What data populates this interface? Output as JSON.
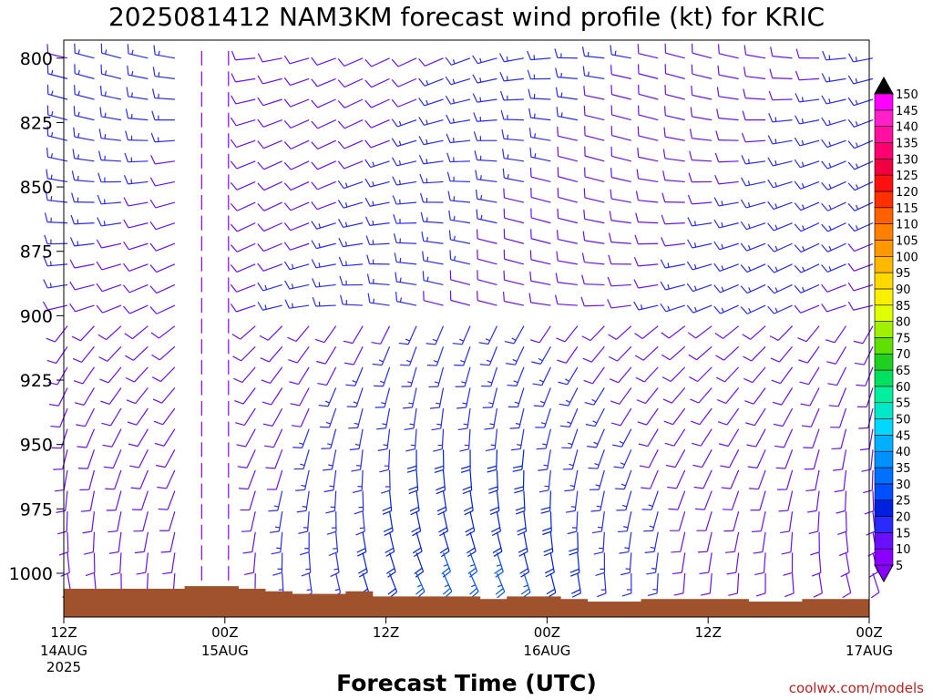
{
  "chart_data": {
    "type": "wind-barb time-height profile",
    "title": "2025081412 NAM3KM forecast wind profile (kt) for KRIC",
    "xlabel": "Forecast Time (UTC)",
    "ylabel": "",
    "credit": "coolwx.com/models",
    "y_axis": {
      "unit": "hPa",
      "range": [
        793,
        1017
      ],
      "inverted": true,
      "ticks": [
        800,
        825,
        850,
        875,
        900,
        925,
        950,
        975,
        1000
      ]
    },
    "x_axis": {
      "range_hours": [
        0,
        60
      ],
      "ticks": [
        {
          "hour": 0,
          "label": "12Z",
          "sub": [
            "14AUG",
            "2025"
          ]
        },
        {
          "hour": 12,
          "label": "00Z",
          "sub": [
            "15AUG"
          ]
        },
        {
          "hour": 24,
          "label": "12Z",
          "sub": []
        },
        {
          "hour": 36,
          "label": "00Z",
          "sub": [
            "16AUG"
          ]
        },
        {
          "hour": 48,
          "label": "12Z",
          "sub": []
        },
        {
          "hour": 60,
          "label": "00Z",
          "sub": [
            "17AUG"
          ]
        }
      ]
    },
    "colorbar": {
      "levels": [
        5,
        10,
        15,
        20,
        25,
        30,
        35,
        40,
        45,
        50,
        55,
        60,
        65,
        70,
        75,
        80,
        85,
        90,
        95,
        100,
        105,
        110,
        115,
        120,
        125,
        130,
        135,
        140,
        145,
        150
      ],
      "colors": [
        "#8a00ff",
        "#6a10ff",
        "#2a2aff",
        "#0020e0",
        "#0050ff",
        "#0070ff",
        "#0090ff",
        "#00b0ff",
        "#00d8ff",
        "#00e8c8",
        "#00f0a0",
        "#00e060",
        "#20d020",
        "#60e000",
        "#a0f000",
        "#e0ff00",
        "#f8f000",
        "#ffd800",
        "#ffb800",
        "#ff9800",
        "#ff8000",
        "#ff6000",
        "#ff3000",
        "#ff1010",
        "#f00040",
        "#ff0070",
        "#ff10a0",
        "#ff20c8",
        "#ff00ff",
        "#000000"
      ]
    },
    "surface_pressure": {
      "hours": [
        0,
        2,
        4,
        6,
        8,
        10,
        12,
        14,
        16,
        18,
        20,
        22,
        24,
        26,
        28,
        30,
        32,
        34,
        36,
        38,
        40,
        42,
        44,
        46,
        48,
        50,
        52,
        54,
        56,
        58,
        60
      ],
      "values": [
        1006,
        1006,
        1006,
        1006,
        1006,
        1005,
        1005,
        1006,
        1007,
        1008,
        1008,
        1007,
        1009,
        1009,
        1009,
        1009,
        1010,
        1009,
        1009,
        1010,
        1011,
        1011,
        1010,
        1010,
        1010,
        1010,
        1011,
        1011,
        1010,
        1010,
        1010
      ],
      "color": "#a0522d"
    },
    "wind_levels_hpa": [
      800,
      808,
      816,
      824,
      832,
      840,
      848,
      856,
      864,
      872,
      880,
      888,
      896,
      904,
      912,
      920,
      928,
      936,
      944,
      952,
      960,
      968,
      976,
      984,
      992,
      1000
    ],
    "wind_time_step_hours": 2,
    "barb_description": "Upper levels mostly W/WSW winds 5-20 kt; low levels SW-SE 10-35 kt strongest near 12Z 15AUG-00Z 16AUG below 925 hPa; near-calm column around 00Z 15AUG"
  }
}
